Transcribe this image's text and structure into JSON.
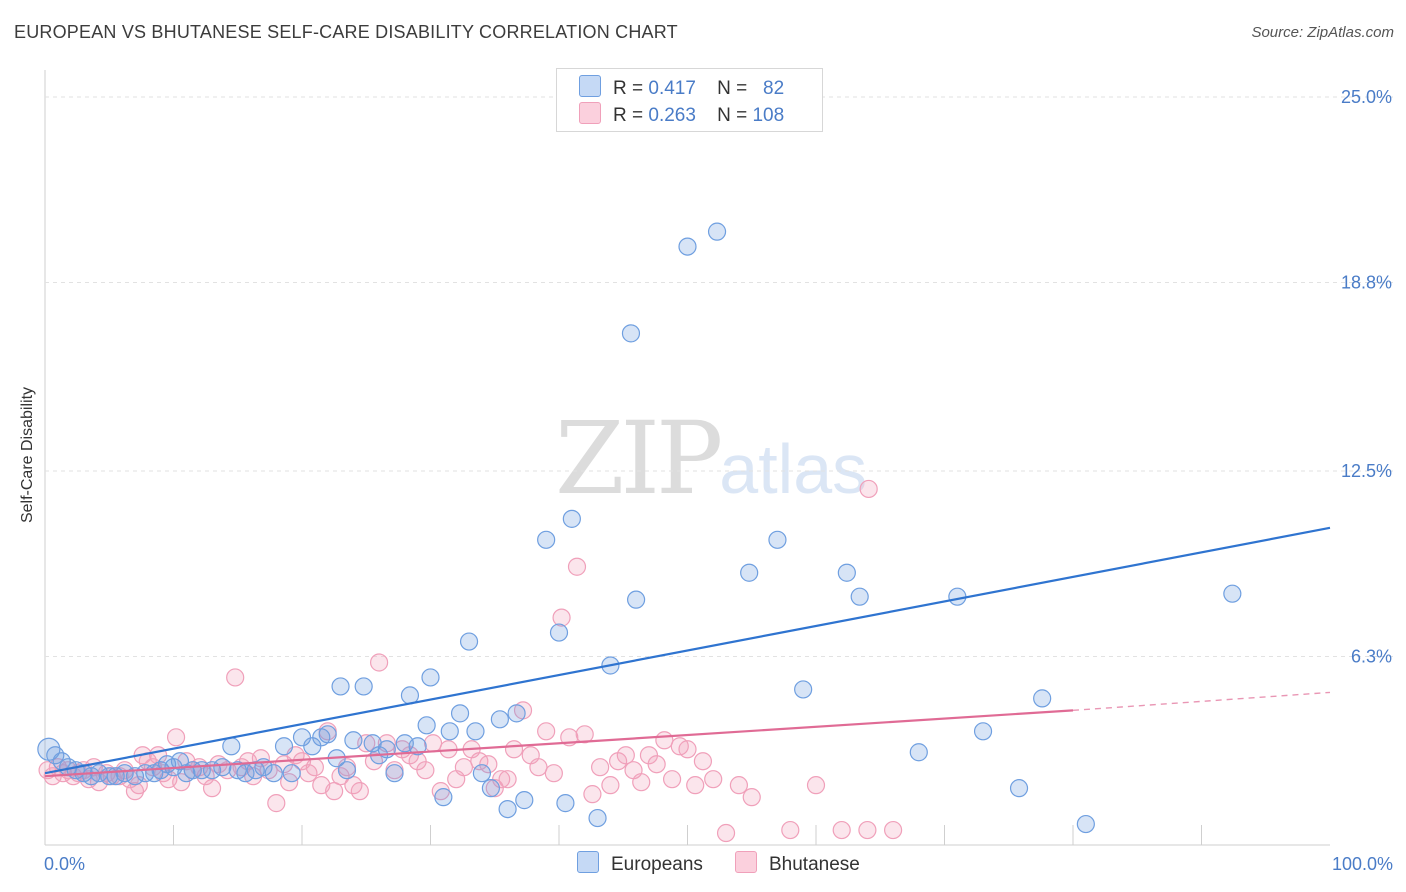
{
  "header": {
    "title": "EUROPEAN VS BHUTANESE SELF-CARE DISABILITY CORRELATION CHART",
    "source": "Source: ZipAtlas.com"
  },
  "legend": {
    "rows": [
      {
        "r_label": "R =",
        "r_value": "0.417",
        "n_label": "N =",
        "n_value": "82"
      },
      {
        "r_label": "R =",
        "r_value": "0.263",
        "n_label": "N =",
        "n_value": "108"
      }
    ],
    "bottom": [
      "Europeans",
      "Bhutanese"
    ]
  },
  "watermark": {
    "zip": "ZIP",
    "atlas": "atlas"
  },
  "chart_data": {
    "type": "scatter",
    "title": "EUROPEAN VS BHUTANESE SELF-CARE DISABILITY CORRELATION CHART",
    "xlabel": "",
    "ylabel": "Self-Care Disability",
    "xlim": [
      0,
      100
    ],
    "ylim": [
      0,
      26
    ],
    "y_ticks": [
      6.3,
      12.5,
      18.8,
      25.0
    ],
    "y_tick_labels": [
      "6.3%",
      "12.5%",
      "18.8%",
      "25.0%"
    ],
    "x_tick_labels": [
      "0.0%",
      "100.0%"
    ],
    "grid": "horizontal dashed",
    "legend_position": "top-center",
    "colors": {
      "europeans": "#6f9fe0",
      "europeans_line": "#2f74d0",
      "bhutanese": "#f0a0ba",
      "bhutanese_line": "#e06b95"
    },
    "series": [
      {
        "name": "Europeans",
        "r": 0.417,
        "n": 82,
        "trend": {
          "x": [
            0,
            100
          ],
          "y": [
            2.4,
            10.6
          ]
        },
        "points": [
          [
            0.3,
            3.2
          ],
          [
            0.8,
            3.0
          ],
          [
            1.3,
            2.8
          ],
          [
            1.8,
            2.6
          ],
          [
            2.4,
            2.5
          ],
          [
            3.0,
            2.4
          ],
          [
            3.6,
            2.3
          ],
          [
            4.2,
            2.4
          ],
          [
            5.0,
            2.3
          ],
          [
            5.5,
            2.3
          ],
          [
            6.2,
            2.4
          ],
          [
            7.0,
            2.3
          ],
          [
            7.8,
            2.4
          ],
          [
            8.5,
            2.4
          ],
          [
            9.0,
            2.5
          ],
          [
            9.5,
            2.7
          ],
          [
            10.0,
            2.6
          ],
          [
            10.5,
            2.8
          ],
          [
            11.0,
            2.4
          ],
          [
            11.5,
            2.5
          ],
          [
            12.2,
            2.5
          ],
          [
            13.0,
            2.5
          ],
          [
            13.8,
            2.6
          ],
          [
            14.5,
            3.3
          ],
          [
            15.0,
            2.5
          ],
          [
            15.6,
            2.4
          ],
          [
            16.4,
            2.5
          ],
          [
            17.0,
            2.6
          ],
          [
            17.8,
            2.4
          ],
          [
            18.6,
            3.3
          ],
          [
            19.2,
            2.4
          ],
          [
            20.0,
            3.6
          ],
          [
            20.8,
            3.3
          ],
          [
            21.5,
            3.6
          ],
          [
            22.0,
            3.7
          ],
          [
            22.7,
            2.9
          ],
          [
            23.0,
            5.3
          ],
          [
            23.5,
            2.5
          ],
          [
            24.0,
            3.5
          ],
          [
            24.8,
            5.3
          ],
          [
            25.5,
            3.4
          ],
          [
            26.0,
            3.0
          ],
          [
            26.6,
            3.2
          ],
          [
            27.2,
            2.4
          ],
          [
            28.0,
            3.4
          ],
          [
            28.4,
            5.0
          ],
          [
            29.0,
            3.3
          ],
          [
            29.7,
            4.0
          ],
          [
            30.0,
            5.6
          ],
          [
            31.0,
            1.6
          ],
          [
            31.5,
            3.8
          ],
          [
            32.3,
            4.4
          ],
          [
            33.0,
            6.8
          ],
          [
            33.5,
            3.8
          ],
          [
            34.0,
            2.4
          ],
          [
            34.7,
            1.9
          ],
          [
            35.4,
            4.2
          ],
          [
            36.0,
            1.2
          ],
          [
            36.7,
            4.4
          ],
          [
            37.3,
            1.5
          ],
          [
            39.0,
            10.2
          ],
          [
            40.0,
            7.1
          ],
          [
            41.0,
            10.9
          ],
          [
            40.5,
            1.4
          ],
          [
            43.0,
            0.9
          ],
          [
            44.0,
            6.0
          ],
          [
            45.6,
            17.1
          ],
          [
            46.0,
            8.2
          ],
          [
            50.0,
            20.0
          ],
          [
            52.3,
            20.5
          ],
          [
            54.8,
            9.1
          ],
          [
            57.0,
            10.2
          ],
          [
            59.0,
            5.2
          ],
          [
            62.4,
            9.1
          ],
          [
            63.4,
            8.3
          ],
          [
            68.0,
            3.1
          ],
          [
            71.0,
            8.3
          ],
          [
            73.0,
            3.8
          ],
          [
            75.8,
            1.9
          ],
          [
            77.6,
            4.9
          ],
          [
            81.0,
            0.7
          ],
          [
            92.4,
            8.4
          ]
        ]
      },
      {
        "name": "Bhutanese",
        "r": 0.263,
        "n": 108,
        "trend": {
          "x": [
            0,
            80
          ],
          "y": [
            2.3,
            4.5
          ]
        },
        "trend_dashed": {
          "x": [
            80,
            100
          ],
          "y": [
            4.5,
            5.1
          ]
        },
        "points": [
          [
            0.2,
            2.5
          ],
          [
            0.6,
            2.3
          ],
          [
            1.0,
            2.6
          ],
          [
            1.4,
            2.4
          ],
          [
            1.8,
            2.5
          ],
          [
            2.2,
            2.3
          ],
          [
            2.6,
            2.4
          ],
          [
            3.0,
            2.5
          ],
          [
            3.4,
            2.2
          ],
          [
            3.8,
            2.6
          ],
          [
            4.2,
            2.1
          ],
          [
            4.8,
            2.4
          ],
          [
            5.2,
            2.3
          ],
          [
            5.8,
            2.3
          ],
          [
            6.2,
            2.5
          ],
          [
            6.6,
            2.2
          ],
          [
            7.0,
            1.8
          ],
          [
            7.3,
            2.0
          ],
          [
            7.6,
            3.0
          ],
          [
            8.0,
            2.8
          ],
          [
            8.4,
            2.6
          ],
          [
            8.8,
            3.0
          ],
          [
            9.2,
            2.4
          ],
          [
            9.6,
            2.2
          ],
          [
            10.2,
            3.6
          ],
          [
            10.6,
            2.1
          ],
          [
            11.0,
            2.8
          ],
          [
            11.5,
            2.5
          ],
          [
            12.0,
            2.6
          ],
          [
            12.5,
            2.3
          ],
          [
            13.0,
            1.9
          ],
          [
            13.5,
            2.7
          ],
          [
            14.2,
            2.5
          ],
          [
            14.8,
            5.6
          ],
          [
            15.3,
            2.6
          ],
          [
            15.8,
            2.8
          ],
          [
            16.2,
            2.3
          ],
          [
            16.8,
            2.9
          ],
          [
            17.4,
            2.5
          ],
          [
            18.0,
            1.4
          ],
          [
            18.6,
            2.7
          ],
          [
            19.0,
            2.1
          ],
          [
            19.5,
            3.0
          ],
          [
            20.0,
            2.8
          ],
          [
            20.5,
            2.4
          ],
          [
            21.0,
            2.6
          ],
          [
            21.5,
            2.0
          ],
          [
            22.0,
            3.8
          ],
          [
            22.5,
            1.8
          ],
          [
            23.0,
            2.3
          ],
          [
            23.5,
            2.6
          ],
          [
            24.0,
            2.0
          ],
          [
            24.5,
            1.8
          ],
          [
            25.0,
            3.4
          ],
          [
            25.6,
            2.8
          ],
          [
            26.0,
            6.1
          ],
          [
            26.6,
            3.4
          ],
          [
            27.2,
            2.5
          ],
          [
            27.8,
            3.2
          ],
          [
            28.4,
            3.0
          ],
          [
            29.0,
            2.8
          ],
          [
            29.6,
            2.5
          ],
          [
            30.2,
            3.4
          ],
          [
            30.8,
            1.8
          ],
          [
            31.4,
            3.2
          ],
          [
            32.0,
            2.2
          ],
          [
            32.6,
            2.6
          ],
          [
            33.2,
            3.2
          ],
          [
            33.8,
            2.8
          ],
          [
            34.5,
            2.7
          ],
          [
            35.0,
            1.9
          ],
          [
            35.5,
            2.2
          ],
          [
            36.0,
            2.2
          ],
          [
            36.5,
            3.2
          ],
          [
            37.2,
            4.5
          ],
          [
            37.8,
            3.0
          ],
          [
            38.4,
            2.6
          ],
          [
            39.0,
            3.8
          ],
          [
            39.6,
            2.4
          ],
          [
            40.2,
            7.6
          ],
          [
            40.8,
            3.6
          ],
          [
            41.4,
            9.3
          ],
          [
            42.0,
            3.7
          ],
          [
            42.6,
            1.7
          ],
          [
            43.2,
            2.6
          ],
          [
            44.0,
            2.0
          ],
          [
            44.6,
            2.8
          ],
          [
            45.2,
            3.0
          ],
          [
            45.8,
            2.5
          ],
          [
            46.4,
            2.1
          ],
          [
            47.0,
            3.0
          ],
          [
            47.6,
            2.7
          ],
          [
            48.2,
            3.5
          ],
          [
            48.8,
            2.2
          ],
          [
            49.4,
            3.3
          ],
          [
            50.0,
            3.2
          ],
          [
            50.6,
            2.0
          ],
          [
            51.2,
            2.8
          ],
          [
            52.0,
            2.2
          ],
          [
            53.0,
            0.4
          ],
          [
            54.0,
            2.0
          ],
          [
            55.0,
            1.6
          ],
          [
            58.0,
            0.5
          ],
          [
            60.0,
            2.0
          ],
          [
            62.0,
            0.5
          ],
          [
            64.0,
            0.5
          ],
          [
            66.0,
            0.5
          ],
          [
            64.1,
            11.9
          ]
        ]
      }
    ]
  }
}
